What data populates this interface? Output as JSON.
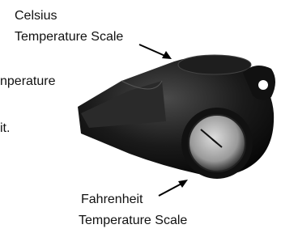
{
  "labels": {
    "celsius": {
      "line1": "Celsius",
      "line2": "Temperature Scale"
    },
    "left_fragment": {
      "line1": "nperature",
      "line2": "it."
    },
    "fahrenheit": {
      "line1": "Fahrenheit",
      "line2": "Temperature Scale"
    }
  }
}
